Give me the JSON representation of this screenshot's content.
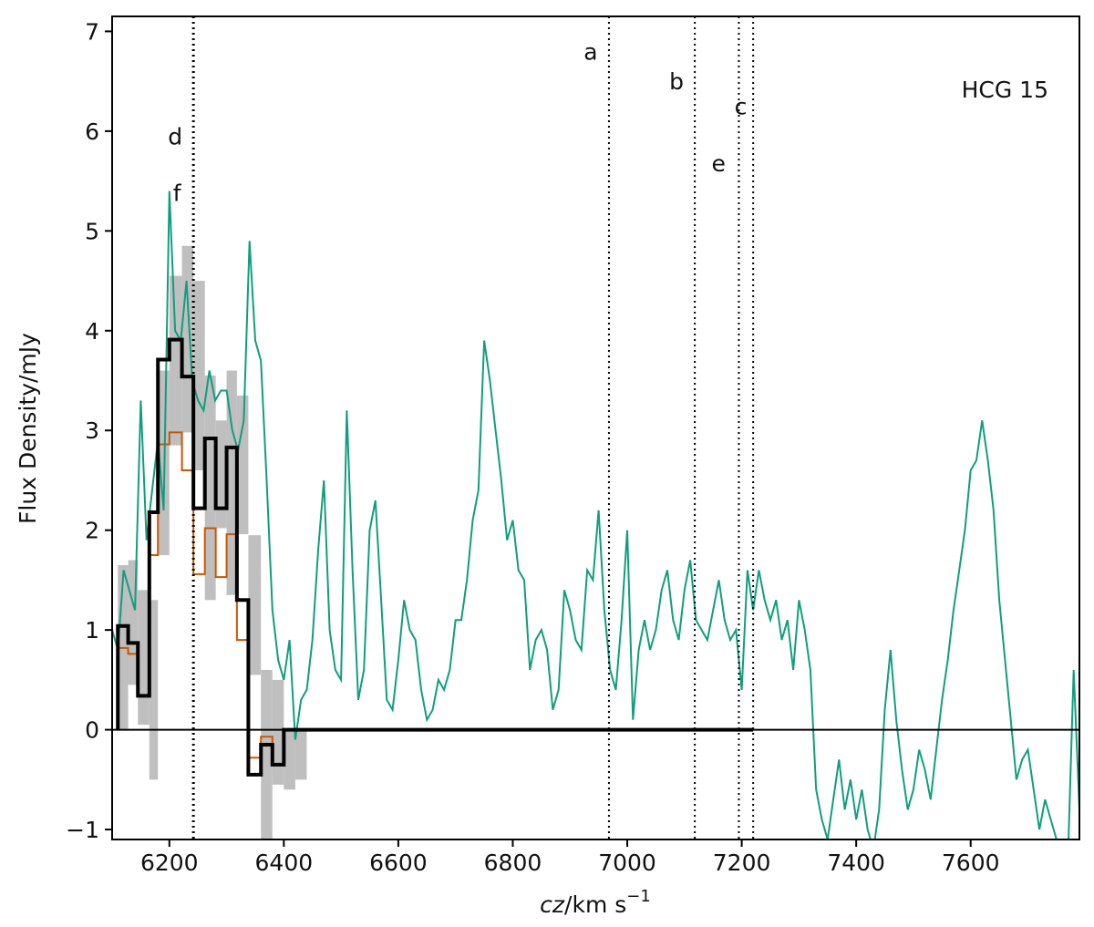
{
  "chart_data": {
    "type": "line",
    "title": "",
    "annotation": "HCG 15",
    "xlabel_main": "cz",
    "xlabel_unit": "/km s",
    "xlabel_sup": "−1",
    "ylabel": "Flux Density/mJy",
    "xlim": [
      6100,
      7790
    ],
    "ylim": [
      -1.1,
      7.15
    ],
    "xticks": [
      6200,
      6400,
      6600,
      6800,
      7000,
      7200,
      7400,
      7600
    ],
    "yticks": [
      -1,
      0,
      1,
      2,
      3,
      4,
      5,
      6,
      7
    ],
    "ytick_labels": [
      "−1",
      "0",
      "1",
      "2",
      "3",
      "4",
      "5",
      "6",
      "7"
    ],
    "colors": {
      "spectrum": "#119e7c",
      "binned": "#000000",
      "model": "#cc5500",
      "uncertainty": "#bfbfbf",
      "markers": "#000000"
    },
    "markers": [
      {
        "label": "a",
        "x": 6968,
        "label_y": 6.8
      },
      {
        "label": "b",
        "x": 7118,
        "label_y": 6.5
      },
      {
        "label": "c",
        "x": 7195,
        "label_y": 6.25
      },
      {
        "label": "e",
        "x": 7220,
        "label_y": 5.68
      },
      {
        "label": "d",
        "x": 6242,
        "label_y": 5.95
      },
      {
        "label": "f",
        "x": 6242,
        "label_y": 5.38
      }
    ],
    "marker_label_offsets": {
      "a": -20,
      "b": -20,
      "c": 2,
      "e": -38,
      "d": -20,
      "f": -18
    },
    "binned_spectrum": {
      "edges": [
        6110,
        6128,
        6145,
        6165,
        6180,
        6200,
        6222,
        6242,
        6262,
        6281,
        6300,
        6318,
        6338,
        6360,
        6380,
        6400,
        6420,
        6440,
        7220
      ],
      "values": [
        1.04,
        0.87,
        0.34,
        2.18,
        3.71,
        3.91,
        3.54,
        2.22,
        2.92,
        2.22,
        2.83,
        1.3,
        -0.45,
        -0.15,
        -0.35,
        0.0,
        0.0,
        0.0
      ]
    },
    "model_spectrum": {
      "edges": [
        6110,
        6128,
        6145,
        6165,
        6180,
        6200,
        6222,
        6242,
        6262,
        6281,
        6300,
        6318,
        6338,
        6360,
        6380,
        6400,
        6420,
        6440
      ],
      "values": [
        0.82,
        0.76,
        0.34,
        1.75,
        2.86,
        2.98,
        2.6,
        1.56,
        2.02,
        1.53,
        1.96,
        0.9,
        -0.28,
        -0.07,
        -0.35,
        0.0,
        0.0
      ]
    },
    "uncertainty_band": {
      "edges": [
        6110,
        6128,
        6145,
        6165,
        6180,
        6200,
        6222,
        6242,
        6262,
        6281,
        6300,
        6318,
        6338,
        6360,
        6380,
        6400,
        6420,
        6440
      ],
      "low": [
        0.0,
        0.45,
        0.05,
        -0.5,
        1.75,
        2.85,
        2.98,
        2.6,
        1.3,
        2.02,
        1.35,
        1.96,
        0.55,
        -1.1,
        -0.55,
        -0.6,
        -0.5
      ],
      "high": [
        1.65,
        1.7,
        1.4,
        1.3,
        3.6,
        4.55,
        4.85,
        4.5,
        3.55,
        3.1,
        3.6,
        3.35,
        1.95,
        0.6,
        0.5,
        0.0,
        0.0
      ]
    },
    "series": [
      {
        "x": [
          6100,
          6110,
          6120,
          6130,
          6140,
          6150,
          6160,
          6170,
          6180,
          6190,
          6200,
          6210,
          6220,
          6230,
          6240,
          6250,
          6260,
          6270,
          6280,
          6290,
          6300,
          6310,
          6320,
          6330,
          6340,
          6350,
          6360,
          6370,
          6380,
          6390,
          6400,
          6410,
          6420,
          6430,
          6440,
          6450,
          6460,
          6470,
          6480,
          6490,
          6500,
          6510,
          6520,
          6530,
          6540,
          6550,
          6560,
          6570,
          6580,
          6590,
          6600,
          6610,
          6620,
          6630,
          6640,
          6650,
          6660,
          6670,
          6680,
          6690,
          6700,
          6710,
          6720,
          6730,
          6740,
          6750,
          6760,
          6770,
          6780,
          6790,
          6800,
          6810,
          6820,
          6830,
          6840,
          6850,
          6860,
          6870,
          6880,
          6890,
          6900,
          6910,
          6920,
          6930,
          6940,
          6950,
          6960,
          6970,
          6980,
          6990,
          7000,
          7010,
          7020,
          7030,
          7040,
          7050,
          7060,
          7070,
          7080,
          7090,
          7100,
          7110,
          7120,
          7130,
          7140,
          7150,
          7160,
          7170,
          7180,
          7190,
          7200,
          7210,
          7220,
          7230,
          7240,
          7250,
          7260,
          7270,
          7280,
          7290,
          7300,
          7310,
          7320,
          7330,
          7340,
          7350,
          7360,
          7370,
          7380,
          7390,
          7400,
          7410,
          7420,
          7430,
          7440,
          7450,
          7460,
          7470,
          7480,
          7490,
          7500,
          7510,
          7520,
          7530,
          7540,
          7550,
          7560,
          7570,
          7580,
          7590,
          7600,
          7610,
          7620,
          7630,
          7640,
          7650,
          7660,
          7670,
          7680,
          7690,
          7700,
          7710,
          7720,
          7730,
          7740,
          7750,
          7760,
          7770,
          7780,
          7790
        ],
        "values": [
          1.0,
          0.8,
          1.6,
          1.4,
          1.2,
          3.3,
          1.9,
          2.4,
          2.9,
          2.2,
          5.4,
          4.0,
          3.9,
          4.5,
          3.5,
          3.3,
          3.2,
          3.6,
          3.3,
          3.4,
          3.4,
          3.0,
          2.8,
          3.1,
          4.9,
          3.9,
          3.7,
          2.5,
          1.2,
          0.7,
          0.5,
          0.9,
          -0.1,
          0.3,
          0.4,
          0.9,
          1.8,
          2.5,
          1.0,
          0.6,
          0.5,
          3.2,
          1.6,
          0.3,
          0.6,
          2.0,
          2.3,
          1.3,
          0.3,
          0.2,
          0.7,
          1.3,
          1.0,
          0.9,
          0.4,
          0.1,
          0.2,
          0.5,
          0.4,
          0.6,
          1.1,
          1.1,
          1.5,
          2.1,
          2.4,
          3.9,
          3.5,
          3.0,
          2.5,
          1.9,
          2.1,
          1.6,
          1.5,
          0.6,
          0.9,
          1.0,
          0.8,
          0.2,
          0.4,
          1.4,
          1.2,
          0.9,
          0.8,
          1.6,
          1.5,
          2.2,
          1.2,
          0.6,
          0.4,
          1.1,
          2.0,
          0.1,
          0.8,
          1.1,
          0.8,
          1.0,
          1.4,
          1.6,
          1.1,
          0.9,
          1.4,
          1.7,
          1.1,
          1.0,
          0.9,
          1.2,
          1.5,
          1.1,
          0.9,
          1.0,
          0.4,
          1.6,
          1.2,
          1.6,
          1.3,
          1.1,
          1.3,
          0.9,
          1.1,
          0.6,
          1.3,
          1.0,
          0.6,
          -0.6,
          -0.9,
          -1.1,
          -0.7,
          -0.3,
          -0.8,
          -0.5,
          -0.9,
          -0.6,
          -1.0,
          -1.2,
          -0.8,
          0.2,
          0.8,
          0.1,
          -0.4,
          -0.8,
          -0.6,
          -0.2,
          -0.4,
          -0.7,
          -0.2,
          0.3,
          0.7,
          1.2,
          1.6,
          2.0,
          2.6,
          2.7,
          3.1,
          2.7,
          2.2,
          1.3,
          0.7,
          0.1,
          -0.5,
          -0.3,
          -0.2,
          -0.6,
          -1.0,
          -0.7,
          -0.9,
          -1.1,
          -1.2,
          -1.3,
          0.6,
          -0.8
        ],
        "color": "#119e7c"
      }
    ]
  }
}
